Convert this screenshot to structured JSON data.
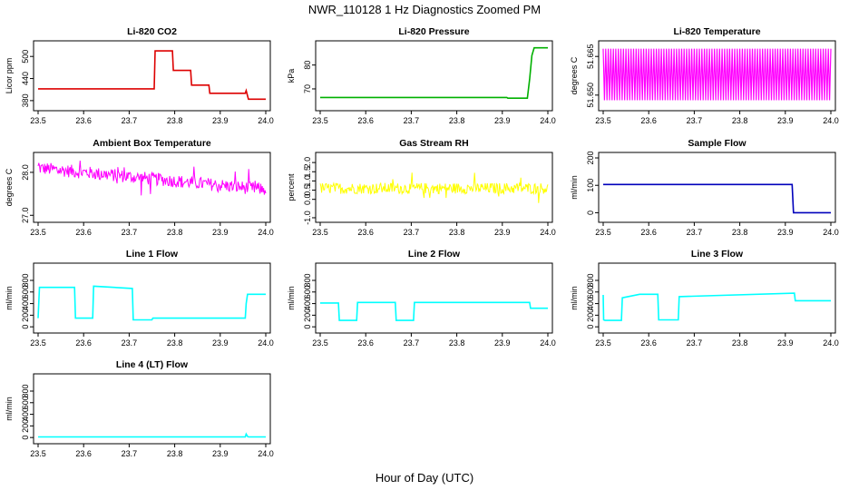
{
  "title": "NWR_110128  1 Hz Diagnostics Zoomed PM",
  "xlabel": "Hour of Day (UTC)",
  "chart_data": [
    {
      "type": "line",
      "title": "Li-820 CO2",
      "ylabel": "Licor ppm",
      "color": "#dd0000",
      "xlim": [
        23.5,
        24.0
      ],
      "xticks": [
        "23.5",
        "23.6",
        "23.7",
        "23.8",
        "23.9",
        "24.0"
      ],
      "ylim": [
        360,
        535
      ],
      "yticks": [
        "380",
        "440",
        "500"
      ],
      "series": [
        {
          "x": [
            23.5,
            23.755,
            23.757,
            23.795,
            23.797,
            23.835,
            23.837,
            23.875,
            23.877,
            23.955,
            23.957,
            23.962,
            23.966,
            24.0
          ],
          "y": [
            412,
            412,
            515,
            515,
            462,
            462,
            422,
            422,
            400,
            400,
            407,
            384,
            384,
            384
          ]
        }
      ]
    },
    {
      "type": "line",
      "title": "Li-820 Pressure",
      "ylabel": "kPa",
      "color": "#00b000",
      "xlim": [
        23.5,
        24.0
      ],
      "xticks": [
        "23.5",
        "23.6",
        "23.7",
        "23.8",
        "23.9",
        "24.0"
      ],
      "ylim": [
        62,
        89
      ],
      "yticks": [
        "70",
        "80"
      ],
      "series": [
        {
          "x": [
            23.5,
            23.91,
            23.912,
            23.955,
            23.96,
            23.965,
            23.97,
            23.975,
            24.0
          ],
          "y": [
            66.4,
            66.4,
            66.1,
            66.1,
            74,
            84,
            87.2,
            87.2,
            87.2
          ]
        }
      ]
    },
    {
      "type": "line",
      "title": "Li-820 Temperature",
      "ylabel": "degrees C",
      "color": "#ff00ff",
      "xlim": [
        23.5,
        24.0
      ],
      "xticks": [
        "23.5",
        "23.6",
        "23.7",
        "23.8",
        "23.9",
        "24.0"
      ],
      "ylim": [
        51.645,
        51.67
      ],
      "yticks": [
        "51.650",
        "51.665"
      ],
      "series": [
        {
          "pattern": "dense oscillation between 51.648 and 51.668",
          "low": 51.648,
          "high": 51.668
        }
      ]
    },
    {
      "type": "line",
      "title": "Ambient Box Temperature",
      "ylabel": "degrees C",
      "color": "#ff00ff",
      "xlim": [
        23.5,
        24.0
      ],
      "xticks": [
        "23.5",
        "23.6",
        "23.7",
        "23.8",
        "23.9",
        "24.0"
      ],
      "ylim": [
        26.9,
        28.4
      ],
      "yticks": [
        "27.0",
        "28.0"
      ],
      "series": [
        {
          "pattern": "noisy series declining from about 28.1 to 27.6",
          "start": 28.1,
          "end": 27.6,
          "noise": 0.15
        }
      ]
    },
    {
      "type": "line",
      "title": "Gas Stream RH",
      "ylabel": "percent",
      "color": "#ffff00",
      "xlim": [
        23.5,
        24.0
      ],
      "xticks": [
        "23.5",
        "23.6",
        "23.7",
        "23.8",
        "23.9",
        "24.0"
      ],
      "ylim": [
        -1.1,
        2.4
      ],
      "yticks": [
        "-1.0",
        "0.0",
        "0.5",
        "1.0",
        "1.5",
        "2.0"
      ],
      "series": [
        {
          "pattern": "noisy series around 0.6",
          "mean": 0.6,
          "noise": 0.3
        }
      ]
    },
    {
      "type": "line",
      "title": "Sample Flow",
      "ylabel": "ml/min",
      "color": "#0000bb",
      "xlim": [
        23.5,
        24.0
      ],
      "xticks": [
        "23.5",
        "23.6",
        "23.7",
        "23.8",
        "23.9",
        "24.0"
      ],
      "ylim": [
        -25,
        210
      ],
      "yticks": [
        "0",
        "100",
        "200"
      ],
      "series": [
        {
          "x": [
            23.5,
            23.915,
            23.918,
            24.0
          ],
          "y": [
            103,
            103,
            0,
            0
          ]
        }
      ]
    },
    {
      "type": "line",
      "title": "Line 1 Flow",
      "ylabel": "ml/min",
      "color": "#00ffff",
      "xlim": [
        23.5,
        24.0
      ],
      "xticks": [
        "23.5",
        "23.6",
        "23.7",
        "23.8",
        "23.9",
        "24.0"
      ],
      "ylim": [
        -60,
        1050
      ],
      "yticks": [
        "0",
        "200",
        "400",
        "600",
        "800"
      ],
      "series": [
        {
          "x": [
            23.5,
            23.503,
            23.505,
            23.58,
            23.582,
            23.62,
            23.622,
            23.707,
            23.709,
            23.75,
            23.752,
            23.955,
            23.957,
            23.96,
            24.0
          ],
          "y": [
            150,
            680,
            680,
            680,
            150,
            150,
            700,
            660,
            120,
            120,
            150,
            150,
            400,
            560,
            560
          ]
        }
      ]
    },
    {
      "type": "line",
      "title": "Line 2 Flow",
      "ylabel": "ml/min",
      "color": "#00ffff",
      "xlim": [
        23.5,
        24.0
      ],
      "xticks": [
        "23.5",
        "23.6",
        "23.7",
        "23.8",
        "23.9",
        "24.0"
      ],
      "ylim": [
        -60,
        1050
      ],
      "yticks": [
        "0",
        "200",
        "400",
        "600",
        "800"
      ],
      "series": [
        {
          "x": [
            23.5,
            23.54,
            23.542,
            23.58,
            23.582,
            23.665,
            23.667,
            23.705,
            23.707,
            23.96,
            23.962,
            24.0
          ],
          "y": [
            410,
            410,
            110,
            110,
            420,
            420,
            110,
            110,
            420,
            420,
            320,
            320
          ]
        }
      ]
    },
    {
      "type": "line",
      "title": "Line 3 Flow",
      "ylabel": "ml/min",
      "color": "#00ffff",
      "xlim": [
        23.5,
        24.0
      ],
      "xticks": [
        "23.5",
        "23.6",
        "23.7",
        "23.8",
        "23.9",
        "24.0"
      ],
      "ylim": [
        -60,
        1050
      ],
      "yticks": [
        "0",
        "200",
        "400",
        "600",
        "800"
      ],
      "series": [
        {
          "x": [
            23.5,
            23.501,
            23.504,
            23.54,
            23.542,
            23.58,
            23.582,
            23.62,
            23.622,
            23.665,
            23.667,
            23.92,
            23.922,
            24.0
          ],
          "y": [
            550,
            120,
            110,
            110,
            500,
            560,
            560,
            560,
            120,
            120,
            520,
            580,
            450,
            450
          ]
        }
      ]
    },
    {
      "type": "line",
      "title": "Line 4 (LT) Flow",
      "ylabel": "ml/min",
      "color": "#00ffff",
      "xlim": [
        23.5,
        24.0
      ],
      "xticks": [
        "23.5",
        "23.6",
        "23.7",
        "23.8",
        "23.9",
        "24.0"
      ],
      "ylim": [
        -60,
        1050
      ],
      "yticks": [
        "0",
        "200",
        "400",
        "600",
        "800"
      ],
      "series": [
        {
          "x": [
            23.5,
            23.955,
            23.957,
            23.96,
            23.962,
            24.0
          ],
          "y": [
            10,
            10,
            60,
            20,
            10,
            10
          ]
        }
      ]
    }
  ]
}
